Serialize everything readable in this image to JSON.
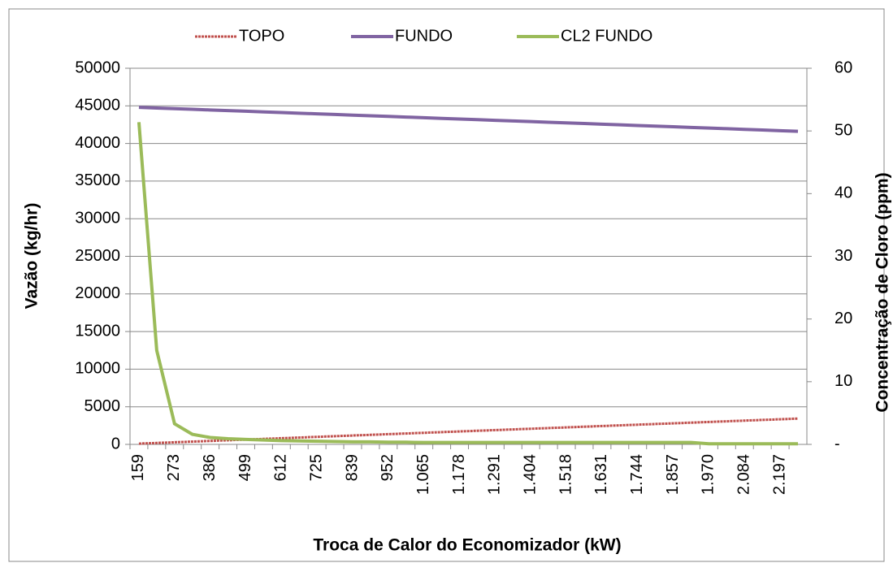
{
  "chart_data": {
    "type": "line",
    "x_label": "Troca de Calor do Economizador (kW)",
    "y_label": "Vazão (kg/hr)",
    "y2_label": "Concentração de Cloro (ppm)",
    "categories": [
      "159",
      null,
      "273",
      null,
      "386",
      null,
      "499",
      null,
      "612",
      null,
      "725",
      null,
      "839",
      null,
      "952",
      null,
      "1.065",
      null,
      "1.178",
      null,
      "1.291",
      null,
      "1.404",
      null,
      "1.518",
      null,
      "1.631",
      null,
      "1.744",
      null,
      "1.857",
      null,
      "1.970",
      null,
      "2.084",
      null,
      "2.197",
      null
    ],
    "series": [
      {
        "name": "TOPO",
        "color": "#c0504d",
        "values": [
          100,
          190,
          280,
          370,
          460,
          550,
          640,
          730,
          820,
          910,
          1000,
          1090,
          1180,
          1270,
          1360,
          1450,
          1540,
          1630,
          1720,
          1810,
          1900,
          1990,
          2080,
          2170,
          2260,
          2350,
          2440,
          2530,
          2620,
          2710,
          2800,
          2890,
          2980,
          3070,
          3160,
          3250,
          3340,
          3430
        ]
      },
      {
        "name": "FUNDO",
        "color": "#8064a2",
        "values": [
          44800,
          44714,
          44628,
          44542,
          44456,
          44370,
          44284,
          44198,
          44112,
          44026,
          43940,
          43854,
          43768,
          43682,
          43596,
          43510,
          43424,
          43338,
          43252,
          43166,
          43080,
          42994,
          42908,
          42822,
          42736,
          42650,
          42564,
          42478,
          42392,
          42306,
          42220,
          42134,
          42048,
          41962,
          41876,
          41790,
          41704,
          41618
        ]
      },
      {
        "name": "CL2 FUNDO",
        "color": "#9bbb59",
        "axis": "y2",
        "values": [
          51.4,
          15,
          3.3,
          1.6,
          1.1,
          0.9,
          0.8,
          0.7,
          0.6,
          0.55,
          0.5,
          0.45,
          0.4,
          0.4,
          0.35,
          0.35,
          0.3,
          0.3,
          0.3,
          0.3,
          0.3,
          0.3,
          0.3,
          0.3,
          0.3,
          0.3,
          0.3,
          0.3,
          0.3,
          0.3,
          0.3,
          0.3,
          0.1,
          0.1,
          0.1,
          0.1,
          0.1,
          0.1
        ]
      }
    ],
    "ylim": [
      0,
      50000
    ],
    "yticks": [
      0,
      5000,
      10000,
      15000,
      20000,
      25000,
      30000,
      35000,
      40000,
      45000,
      50000
    ],
    "y2lim": [
      0,
      60
    ],
    "y2ticks": [
      {
        "value": 0,
        "label": "-"
      },
      10,
      20,
      30,
      40,
      50,
      60
    ],
    "grid": true,
    "legend": "top"
  }
}
